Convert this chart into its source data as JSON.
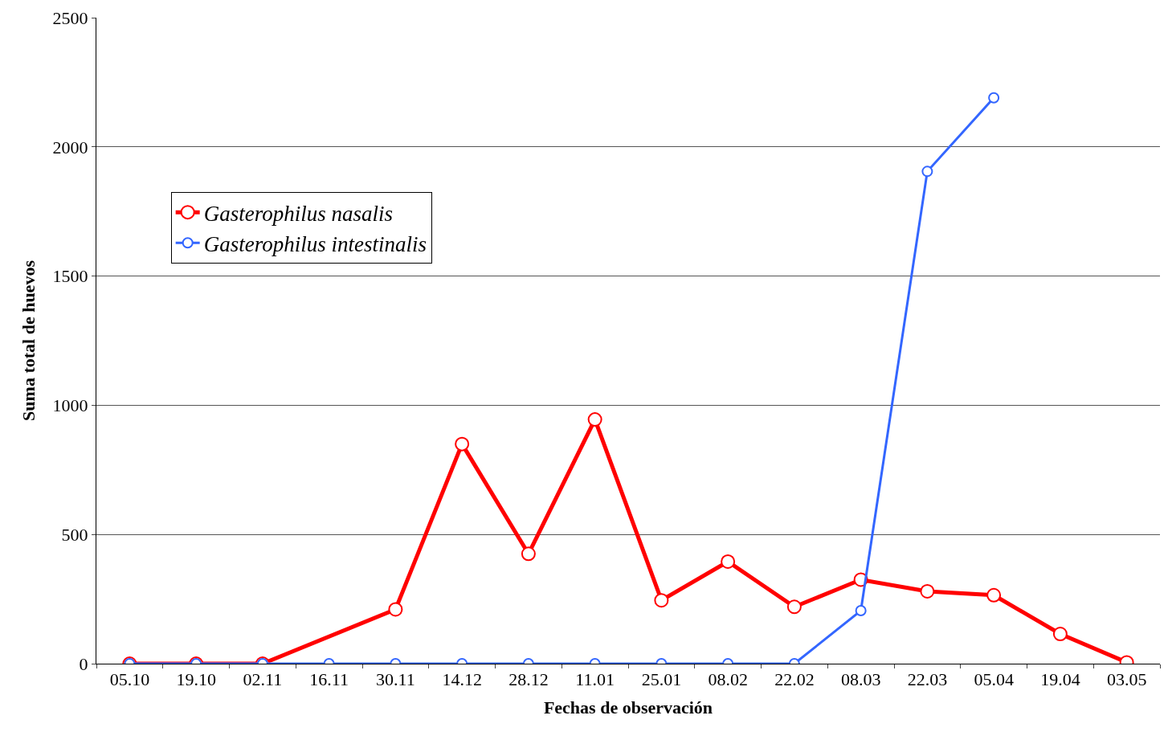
{
  "chart_data": {
    "type": "line",
    "xlabel": "Fechas de observación",
    "ylabel": "Suma total de huevos",
    "categories": [
      "05.10",
      "19.10",
      "02.11",
      "16.11",
      "30.11",
      "14.12",
      "28.12",
      "11.01",
      "25.01",
      "08.02",
      "22.02",
      "08.03",
      "22.03",
      "05.04",
      "19.04",
      "03.05"
    ],
    "series": [
      {
        "name": "Gasterophilus nasalis",
        "color": "#ff0000",
        "values": [
          0,
          0,
          0,
          null,
          210,
          850,
          425,
          945,
          245,
          395,
          220,
          325,
          280,
          265,
          115,
          5
        ]
      },
      {
        "name": "Gasterophilus intestinalis",
        "color": "#3366ff",
        "values": [
          0,
          0,
          0,
          0,
          0,
          0,
          0,
          0,
          0,
          0,
          0,
          205,
          1905,
          2190,
          null,
          null
        ]
      }
    ],
    "ylim": [
      0,
      2500
    ],
    "yticks": [
      0,
      500,
      1000,
      1500,
      2000,
      2500
    ],
    "grid": "y",
    "legend": "top left",
    "marker": "circle",
    "line_style": "solid"
  }
}
